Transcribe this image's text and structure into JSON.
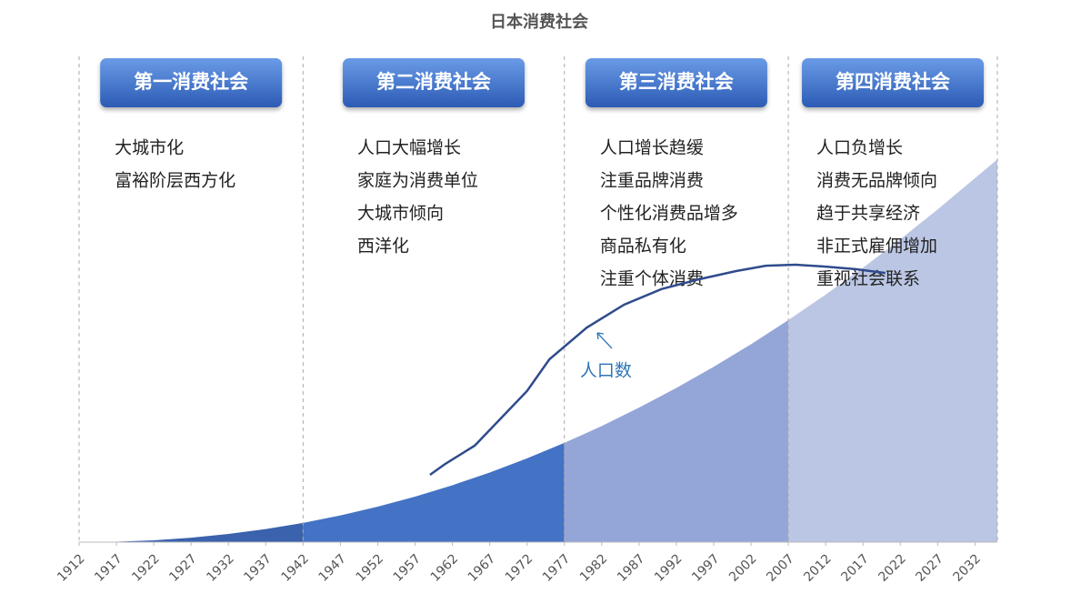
{
  "chart_data": {
    "type": "area",
    "title": "日本消费社会",
    "xlim": [
      1912,
      2035
    ],
    "ylim": [
      0,
      100
    ],
    "xticks": [
      1912,
      1917,
      1922,
      1927,
      1932,
      1937,
      1942,
      1947,
      1952,
      1957,
      1962,
      1967,
      1972,
      1977,
      1982,
      1987,
      1992,
      1997,
      2002,
      2007,
      2012,
      2017,
      2022,
      2027,
      2032
    ],
    "x": [
      1912,
      1917,
      1922,
      1927,
      1932,
      1937,
      1942,
      1947,
      1952,
      1957,
      1962,
      1967,
      1972,
      1977,
      1982,
      1987,
      1992,
      1997,
      2002,
      2007,
      2012,
      2017,
      2022,
      2027,
      2032,
      2035
    ],
    "values": [
      0,
      0.09,
      0.38,
      0.91,
      1.67,
      2.69,
      3.95,
      5.48,
      7.27,
      9.34,
      11.67,
      14.28,
      17.18,
      20.35,
      23.81,
      27.58,
      31.62,
      35.97,
      40.59,
      45.55,
      50.78,
      56.27,
      62.11,
      68.24,
      74.66,
      78.5
    ],
    "series": [
      {
        "type": "line",
        "name": "人口数",
        "color": "#2f4b8c",
        "x": [
          1959,
          1961,
          1965,
          1970,
          1972,
          1975,
          1980,
          1985,
          1990,
          1995,
          2000,
          2004,
          2008,
          2012,
          2016,
          2020
        ],
        "values": [
          13.8,
          16,
          19.8,
          27.8,
          31,
          37.5,
          44,
          48.7,
          51.9,
          53.9,
          55.6,
          56.7,
          56.9,
          56.5,
          56,
          55.2
        ]
      }
    ],
    "eras": [
      {
        "title": "第一消费社会",
        "from": 1912,
        "to": 1942,
        "color": "#3a62ad",
        "items": [
          "大城市化",
          "富裕阶层西方化"
        ]
      },
      {
        "title": "第二消费社会",
        "from": 1942,
        "to": 1977,
        "color": "#4472c4",
        "items": [
          "人口大幅增长",
          "家庭为消费单位",
          "大城市倾向",
          "西洋化"
        ]
      },
      {
        "title": "第三消费社会",
        "from": 1977,
        "to": 2007,
        "color": "#94a6d8",
        "items": [
          "人口增长趋缓",
          "注重品牌消费",
          "个性化消费品增多",
          "商品私有化",
          "注重个体消费"
        ]
      },
      {
        "title": "第四消费社会",
        "from": 2007,
        "to": 2035,
        "color": "#bac6e3",
        "items": [
          "人口负增长",
          "消费无品牌倾向",
          "趋于共享经济",
          "非正式雇佣增加",
          "重视社会联系"
        ]
      }
    ]
  }
}
